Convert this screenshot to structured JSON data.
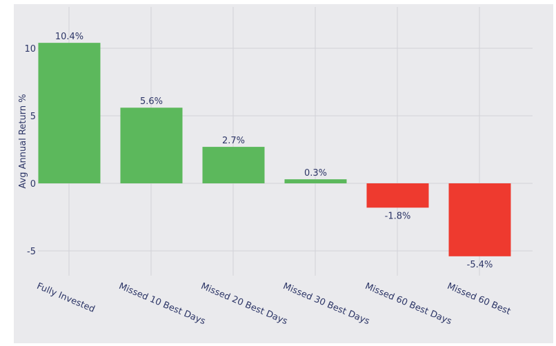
{
  "chart_data": {
    "type": "bar",
    "title": "",
    "xlabel": "",
    "ylabel": "Avg Annual Return %",
    "categories": [
      "Fully Invested",
      "Missed 10 Best Days",
      "Missed 20 Best Days",
      "Missed 30 Best Days",
      "Missed 60 Best Days",
      "Missed 60 Best"
    ],
    "values": [
      10.4,
      5.6,
      2.7,
      0.3,
      -1.8,
      -5.4
    ],
    "data_labels": [
      "10.4%",
      "5.6%",
      "2.7%",
      "0.3%",
      "-1.8%",
      "-5.4%"
    ],
    "yticks": [
      10,
      5,
      0,
      -5
    ],
    "ytick_labels": [
      "10",
      "5",
      "0",
      "-5"
    ],
    "ylim": [
      -7.0,
      12.5
    ],
    "grid": true,
    "colors": {
      "positive": "#5cb85c",
      "negative": "#ee3a2f",
      "background": "#eaeaed",
      "grid": "#d2d2d8",
      "text": "#2c3566"
    }
  }
}
